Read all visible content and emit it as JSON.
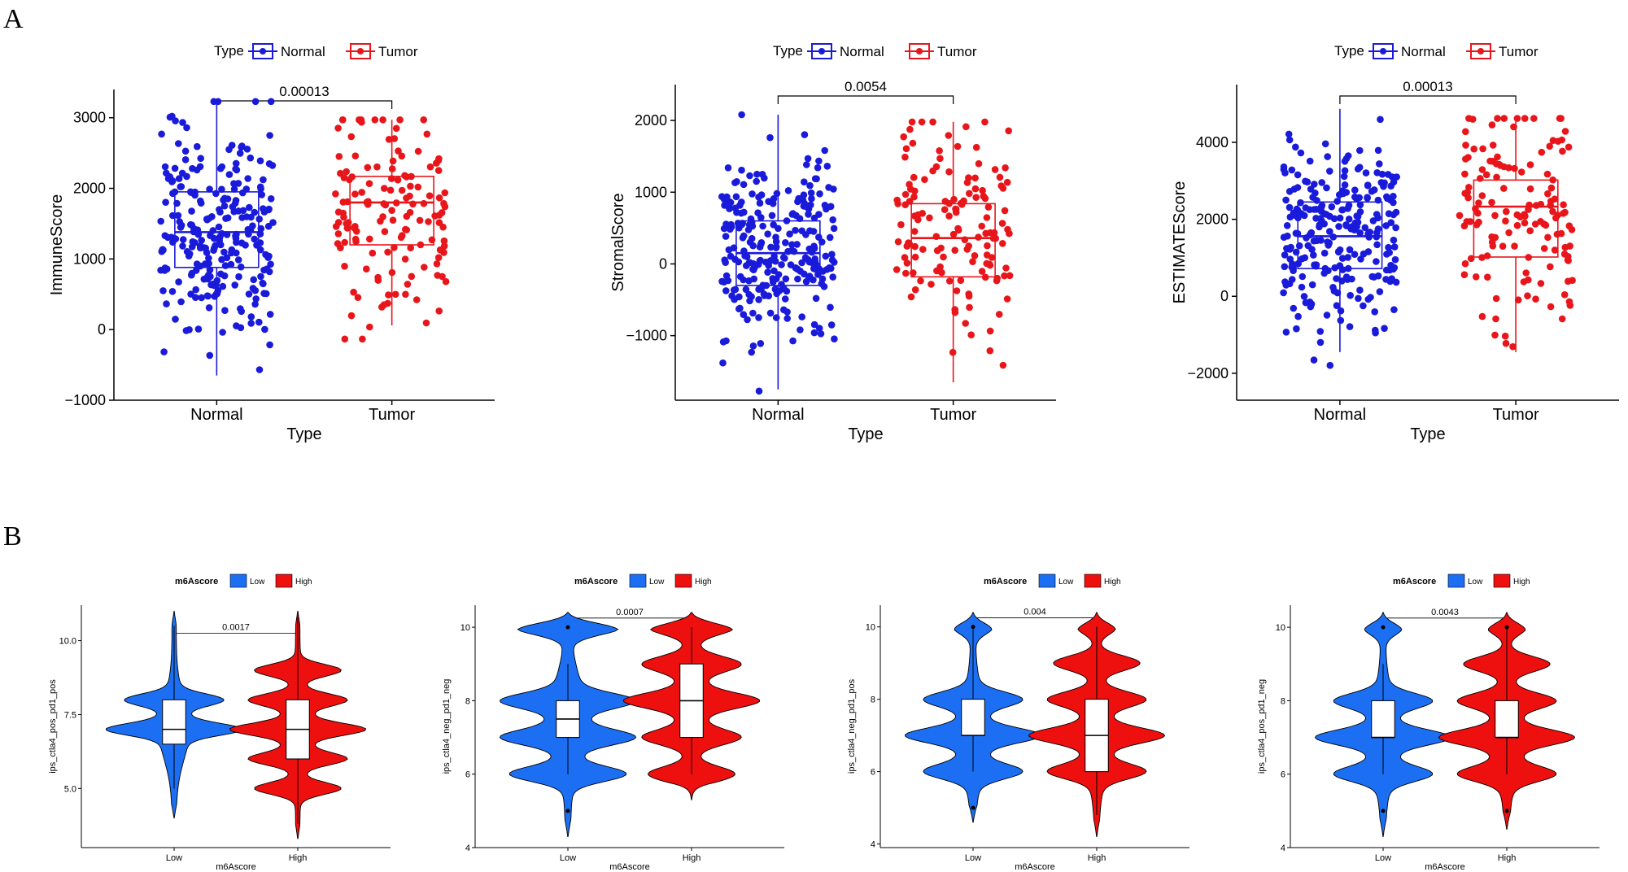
{
  "panels": {
    "a": "A",
    "b": "B"
  },
  "colors": {
    "normal": "#1a1adb",
    "tumor": "#e8161b",
    "low": "#1c6ff2",
    "high": "#ee0f0f",
    "axis": "#000000"
  },
  "chart_data": [
    {
      "type": "box",
      "panel": "A",
      "legend_title": "Type",
      "legend": [
        "Normal",
        "Tumor"
      ],
      "xlabel": "Type",
      "ylabel": "ImmuneScore",
      "categories": [
        "Normal",
        "Tumor"
      ],
      "ylim": [
        -1000,
        3400
      ],
      "yticks": [
        -1000,
        0,
        1000,
        2000,
        3000
      ],
      "ytick_labels": [
        "−1000",
        "0",
        "1000",
        "2000",
        "3000"
      ],
      "pvalue": "0.00013",
      "boxes": [
        {
          "name": "Normal",
          "q1": 880,
          "median": 1380,
          "q3": 1950,
          "whisker_low": -650,
          "whisker_high": 3230,
          "n": 260
        },
        {
          "name": "Tumor",
          "q1": 1200,
          "median": 1800,
          "q3": 2170,
          "whisker_low": 60,
          "whisker_high": 2970,
          "n": 140
        }
      ]
    },
    {
      "type": "box",
      "panel": "A",
      "legend_title": "Type",
      "legend": [
        "Normal",
        "Tumor"
      ],
      "xlabel": "Type",
      "ylabel": "StromalScore",
      "categories": [
        "Normal",
        "Tumor"
      ],
      "ylim": [
        -1900,
        2500
      ],
      "yticks": [
        -1000,
        0,
        1000,
        2000
      ],
      "ytick_labels": [
        "−1000",
        "0",
        "1000",
        "2000"
      ],
      "pvalue": "0.0054",
      "boxes": [
        {
          "name": "Normal",
          "q1": -300,
          "median": 150,
          "q3": 600,
          "whisker_low": -1750,
          "whisker_high": 2080,
          "n": 260
        },
        {
          "name": "Tumor",
          "q1": -180,
          "median": 360,
          "q3": 840,
          "whisker_low": -1650,
          "whisker_high": 1980,
          "n": 140
        }
      ]
    },
    {
      "type": "box",
      "panel": "A",
      "legend_title": "Type",
      "legend": [
        "Normal",
        "Tumor"
      ],
      "xlabel": "Type",
      "ylabel": "ESTIMATEScore",
      "categories": [
        "Normal",
        "Tumor"
      ],
      "ylim": [
        -2700,
        5500
      ],
      "yticks": [
        -2000,
        0,
        2000,
        4000
      ],
      "ytick_labels": [
        "−2000",
        "0",
        "2000",
        "4000"
      ],
      "pvalue": "0.00013",
      "boxes": [
        {
          "name": "Normal",
          "q1": 720,
          "median": 1560,
          "q3": 2450,
          "whisker_low": -1450,
          "whisker_high": 4870,
          "n": 260
        },
        {
          "name": "Tumor",
          "q1": 1020,
          "median": 2330,
          "q3": 3020,
          "whisker_low": -1450,
          "whisker_high": 4620,
          "n": 140
        }
      ]
    },
    {
      "type": "violin",
      "panel": "B",
      "legend_title": "m6Ascore",
      "legend": [
        "Low",
        "High"
      ],
      "xlabel": "m6Ascore",
      "ylabel": "ips_ctla4_pos_pd1_pos",
      "categories": [
        "Low",
        "High"
      ],
      "ylim": [
        3,
        11.2
      ],
      "yticks": [
        5,
        7.5,
        10
      ],
      "ytick_labels": [
        "5.0",
        "7.5",
        "10.0"
      ],
      "pvalue": "0.0017",
      "groups": [
        {
          "name": "Low",
          "min": 4,
          "max": 11,
          "q1": 6.5,
          "median": 7,
          "q3": 8,
          "whisker_low": 5,
          "whisker_high": 10.5,
          "peaks": [
            7,
            8
          ],
          "outliers": []
        },
        {
          "name": "High",
          "min": 3.3,
          "max": 11,
          "q1": 6,
          "median": 7,
          "q3": 8,
          "whisker_low": 3.8,
          "whisker_high": 10.8,
          "peaks": [
            5,
            6,
            7,
            8,
            9
          ],
          "outliers": []
        }
      ]
    },
    {
      "type": "violin",
      "panel": "B",
      "legend_title": "m6Ascore",
      "legend": [
        "Low",
        "High"
      ],
      "xlabel": "m6Ascore",
      "ylabel": "ips_ctla4_neg_pd1_neg",
      "categories": [
        "Low",
        "High"
      ],
      "ylim": [
        4,
        10.6
      ],
      "yticks": [
        4,
        6,
        8,
        10
      ],
      "ytick_labels": [
        "4",
        "6",
        "8",
        "10"
      ],
      "pvalue": "0.0007",
      "groups": [
        {
          "name": "Low",
          "min": 4.3,
          "max": 10.4,
          "q1": 7,
          "median": 7.5,
          "q3": 8,
          "whisker_low": 6,
          "whisker_high": 9,
          "peaks": [
            6,
            7,
            8,
            10
          ],
          "outliers": [
            5,
            10
          ]
        },
        {
          "name": "High",
          "min": 5.3,
          "max": 10.4,
          "q1": 7,
          "median": 8,
          "q3": 9,
          "whisker_low": 6,
          "whisker_high": 10,
          "peaks": [
            6,
            7,
            8,
            9,
            10
          ],
          "outliers": []
        }
      ]
    },
    {
      "type": "violin",
      "panel": "B",
      "legend_title": "m6Ascore",
      "legend": [
        "Low",
        "High"
      ],
      "xlabel": "m6Ascore",
      "ylabel": "ips_ctla4_neg_pd1_pos",
      "categories": [
        "Low",
        "High"
      ],
      "ylim": [
        3.9,
        10.6
      ],
      "yticks": [
        4,
        6,
        8,
        10
      ],
      "ytick_labels": [
        "4",
        "6",
        "8",
        "10"
      ],
      "pvalue": "0.004",
      "groups": [
        {
          "name": "Low",
          "min": 4.6,
          "max": 10.4,
          "q1": 7,
          "median": 7,
          "q3": 8,
          "whisker_low": 6,
          "whisker_high": 10,
          "peaks": [
            6,
            7,
            8,
            10
          ],
          "outliers": [
            5,
            10
          ]
        },
        {
          "name": "High",
          "min": 4.2,
          "max": 10.4,
          "q1": 6,
          "median": 7,
          "q3": 8,
          "whisker_low": 4.8,
          "whisker_high": 10,
          "peaks": [
            6,
            7,
            8,
            9,
            10
          ],
          "outliers": []
        }
      ]
    },
    {
      "type": "violin",
      "panel": "B",
      "legend_title": "m6Ascore",
      "legend": [
        "Low",
        "High"
      ],
      "xlabel": "m6Ascore",
      "ylabel": "ips_ctla4_pos_pd1_neg",
      "categories": [
        "Low",
        "High"
      ],
      "ylim": [
        4,
        10.6
      ],
      "yticks": [
        4,
        6,
        8,
        10
      ],
      "ytick_labels": [
        "4",
        "6",
        "8",
        "10"
      ],
      "pvalue": "0.0043",
      "groups": [
        {
          "name": "Low",
          "min": 4.3,
          "max": 10.4,
          "q1": 7,
          "median": 7,
          "q3": 8,
          "whisker_low": 6,
          "whisker_high": 9,
          "peaks": [
            6,
            7,
            8,
            10
          ],
          "outliers": [
            5,
            10
          ]
        },
        {
          "name": "High",
          "min": 4.5,
          "max": 10.4,
          "q1": 7,
          "median": 7,
          "q3": 8,
          "whisker_low": 6,
          "whisker_high": 10,
          "peaks": [
            6,
            7,
            8,
            9,
            10
          ],
          "outliers": [
            5,
            10
          ]
        }
      ]
    }
  ]
}
